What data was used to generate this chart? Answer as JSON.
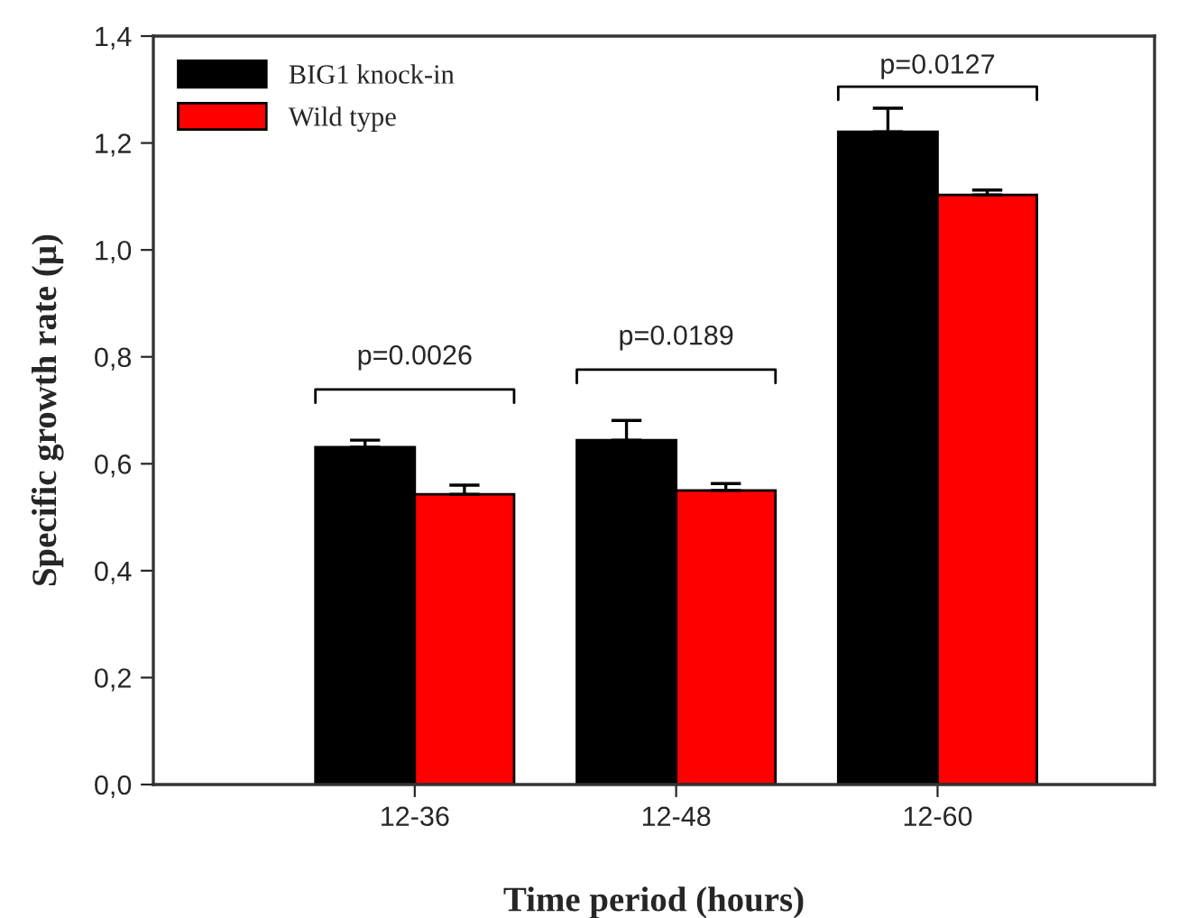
{
  "chart_data": {
    "type": "bar",
    "xlabel": "Time period (hours)",
    "ylabel": "Specific growth rate (µ)",
    "categories": [
      "12-36",
      "12-48",
      "12-60"
    ],
    "series": [
      {
        "name": "BIG1 knock-in",
        "color": "#000000",
        "values": [
          0.631,
          0.644,
          1.221
        ],
        "errors": [
          0.013,
          0.037,
          0.044
        ]
      },
      {
        "name": "Wild type",
        "color": "#ff0000",
        "values": [
          0.543,
          0.55,
          1.103
        ],
        "errors": [
          0.017,
          0.013,
          0.009
        ]
      }
    ],
    "ylim": [
      0,
      1.4
    ],
    "yticks": [
      {
        "value": 0,
        "label": "0,0"
      },
      {
        "value": 0.2,
        "label": "0,2"
      },
      {
        "value": 0.4,
        "label": "0,4"
      },
      {
        "value": 0.6,
        "label": "0,6"
      },
      {
        "value": 0.8,
        "label": "0,8"
      },
      {
        "value": 1.0,
        "label": "1,0"
      },
      {
        "value": 1.2,
        "label": "1,2"
      },
      {
        "value": 1.4,
        "label": "1,4"
      }
    ],
    "annotations": [
      "p=0.0026",
      "p=0.0189",
      "p=0.0127"
    ],
    "legend": "top left",
    "grid": false
  }
}
